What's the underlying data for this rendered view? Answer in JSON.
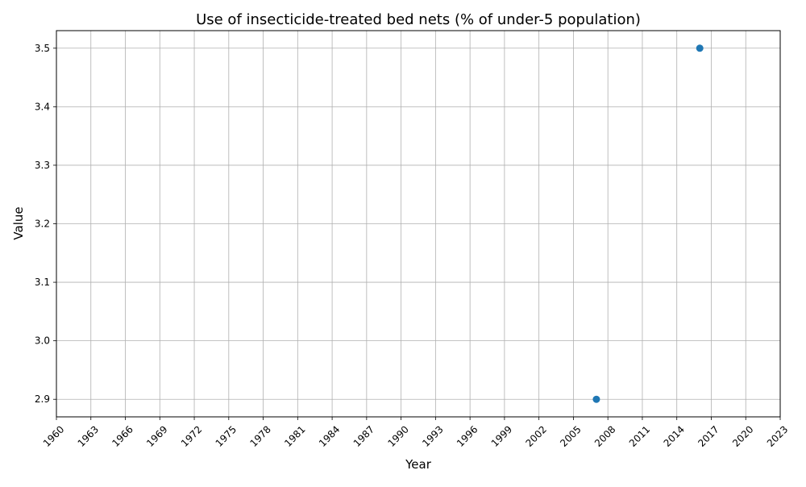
{
  "chart_data": {
    "type": "scatter",
    "title": "Use of insecticide-treated bed nets (% of under-5 population)",
    "xlabel": "Year",
    "ylabel": "Value",
    "xlim": [
      1960,
      2023
    ],
    "ylim": [
      2.87,
      3.53
    ],
    "x_ticks": [
      1960,
      1963,
      1966,
      1969,
      1972,
      1975,
      1978,
      1981,
      1984,
      1987,
      1990,
      1993,
      1996,
      1999,
      2002,
      2005,
      2008,
      2011,
      2014,
      2017,
      2020,
      2023
    ],
    "y_ticks": [
      "2.9",
      "3.0",
      "3.1",
      "3.2",
      "3.3",
      "3.4",
      "3.5"
    ],
    "grid": true,
    "legend": false,
    "series": [
      {
        "color": "#1f77b4",
        "points": [
          {
            "x": 2007,
            "y": 2.9
          },
          {
            "x": 2016,
            "y": 3.5
          }
        ]
      }
    ]
  }
}
